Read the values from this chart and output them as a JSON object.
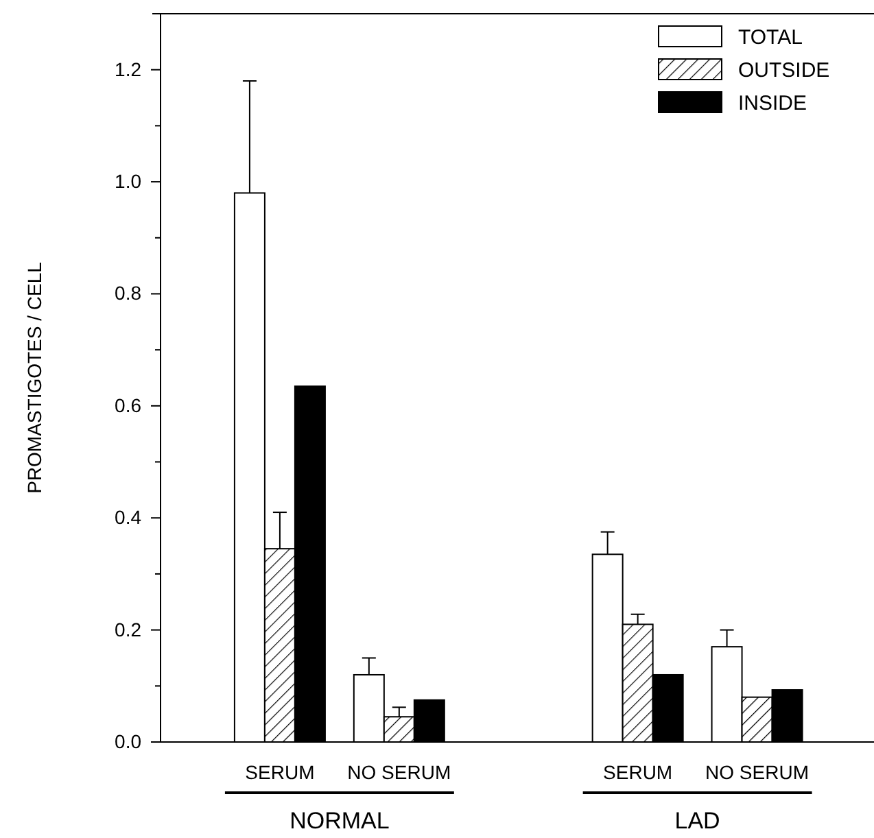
{
  "chart_data": {
    "type": "bar",
    "ylabel": "PROMASTIGOTES / CELL",
    "categories": [
      "SERUM",
      "NO SERUM",
      "SERUM",
      "NO SERUM"
    ],
    "annotations": [
      "NORMAL",
      "LAD"
    ],
    "series": [
      {
        "name": "TOTAL",
        "color": "#ffffff",
        "values": [
          0.98,
          0.12,
          0.335,
          0.17
        ],
        "errors": [
          0.2,
          0.03,
          0.04,
          0.03
        ]
      },
      {
        "name": "OUTSIDE",
        "color": "#000000",
        "values": [
          0.345,
          0.045,
          0.21,
          0.08
        ],
        "errors": [
          0.065,
          0.017,
          0.018,
          null
        ]
      },
      {
        "name": "INSIDE",
        "color": "#000000",
        "values": [
          0.635,
          0.075,
          0.12,
          0.093
        ]
      }
    ],
    "ylim": [
      0,
      1.3
    ],
    "yticks": [
      {
        "value": 0,
        "label": "0.0"
      },
      {
        "value": 0.1,
        "label": null
      },
      {
        "value": 0.2,
        "label": "0.2"
      },
      {
        "value": 0.3,
        "label": null
      },
      {
        "value": 0.4,
        "label": "0.4"
      },
      {
        "value": 0.5,
        "label": null
      },
      {
        "value": 0.6,
        "label": "0.6"
      },
      {
        "value": 0.7,
        "label": null
      },
      {
        "value": 0.8,
        "label": "0.8"
      },
      {
        "value": 0.9,
        "label": null
      },
      {
        "value": 1.0,
        "label": "1.0"
      },
      {
        "value": 1.1,
        "label": null
      },
      {
        "value": 1.2,
        "label": "1.2"
      }
    ],
    "grid": false,
    "legend": "top right"
  }
}
